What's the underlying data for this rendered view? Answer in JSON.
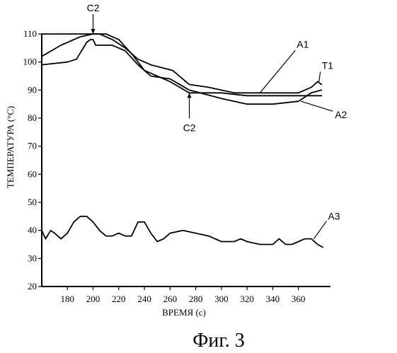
{
  "chart_data": {
    "type": "line",
    "title": "",
    "xlabel": "ВРЕМЯ (с)",
    "ylabel": "ТЕМПЕРАТУРА (°C)",
    "xlim": [
      160,
      385
    ],
    "ylim": [
      20,
      110
    ],
    "x_ticks": [
      180,
      200,
      220,
      240,
      260,
      280,
      300,
      320,
      340,
      360
    ],
    "y_ticks": [
      20,
      30,
      40,
      50,
      60,
      70,
      80,
      90,
      100,
      110
    ],
    "x_tick_labels": [
      "180",
      "200",
      "220",
      "240",
      "260",
      "280",
      "300",
      "320",
      "340",
      "360"
    ],
    "y_tick_labels": [
      "20",
      "30",
      "40",
      "50",
      "60",
      "70",
      "80",
      "90",
      "100",
      "110"
    ],
    "grid": false,
    "series": [
      {
        "name": "T1",
        "x": [
          160,
          180,
          190,
          196,
          200,
          210,
          220,
          230,
          240,
          260,
          275,
          280,
          300,
          320,
          340,
          360,
          370,
          375,
          378
        ],
        "y": [
          110,
          110,
          110,
          110,
          110,
          110,
          108,
          103,
          97,
          93,
          89,
          89,
          89,
          88,
          88,
          88,
          88,
          88,
          88
        ]
      },
      {
        "name": "A1",
        "x": [
          160,
          175,
          190,
          200,
          205,
          215,
          225,
          235,
          245,
          262,
          275,
          290,
          310,
          320,
          340,
          360,
          370,
          375,
          378
        ],
        "y": [
          102,
          106,
          109,
          110,
          110,
          108,
          105,
          101,
          99,
          97,
          92,
          91,
          89,
          89,
          89,
          89,
          91,
          93,
          92
        ]
      },
      {
        "name": "A2",
        "x": [
          160,
          180,
          187,
          195,
          198,
          200,
          202,
          215,
          225,
          235,
          245,
          260,
          275,
          300,
          320,
          340,
          360,
          370,
          378
        ],
        "y": [
          99,
          100,
          101,
          107,
          108,
          108,
          106,
          106,
          104,
          99,
          95,
          94,
          90,
          87,
          85,
          85,
          86,
          89,
          90
        ]
      },
      {
        "name": "A3",
        "x": [
          160,
          163,
          167,
          170,
          175,
          180,
          185,
          190,
          195,
          200,
          205,
          210,
          215,
          220,
          225,
          230,
          235,
          240,
          245,
          250,
          255,
          260,
          270,
          280,
          290,
          300,
          310,
          315,
          320,
          330,
          340,
          345,
          350,
          355,
          360,
          365,
          370,
          375,
          379
        ],
        "y": [
          40,
          37,
          40,
          39,
          37,
          39,
          43,
          45,
          45,
          43,
          40,
          38,
          38,
          39,
          38,
          38,
          43,
          43,
          39,
          36,
          37,
          39,
          40,
          39,
          38,
          36,
          36,
          37,
          36,
          35,
          35,
          37,
          35,
          35,
          36,
          37,
          37,
          35,
          34
        ]
      }
    ],
    "annotations": [
      {
        "text": "C2",
        "x": 200,
        "y": 110,
        "position": "above"
      },
      {
        "text": "C2",
        "x": 275,
        "y": 89,
        "position": "below"
      },
      {
        "text": "A1",
        "x": 330,
        "y": 89
      },
      {
        "text": "T1",
        "x": 376,
        "y": 93
      },
      {
        "text": "A2",
        "x": 362,
        "y": 86
      },
      {
        "text": "A3",
        "x": 372,
        "y": 37
      }
    ]
  },
  "figure_caption": "Фиг. 3"
}
